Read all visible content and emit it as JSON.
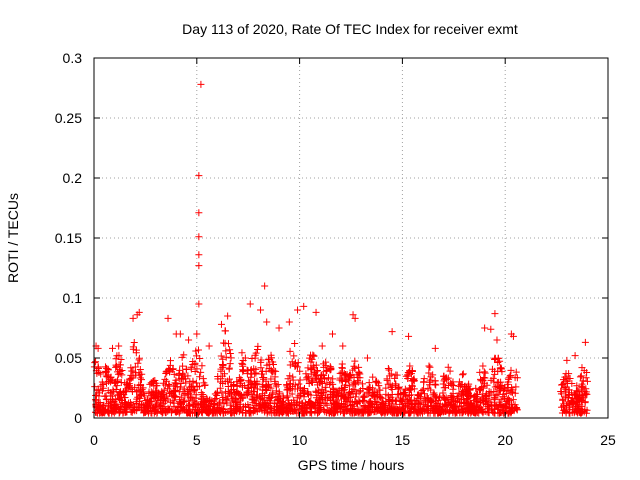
{
  "chart_data": {
    "type": "scatter",
    "title": "Day 113 of 2020, Rate Of TEC Index for receiver exmt",
    "xlabel": "GPS time / hours",
    "ylabel": "ROTI / TECUs",
    "xlim": [
      0,
      25
    ],
    "ylim": [
      0,
      0.3
    ],
    "xticks": [
      0,
      5,
      10,
      15,
      20,
      25
    ],
    "yticks": [
      0,
      0.05,
      0.1,
      0.15,
      0.2,
      0.25,
      0.3
    ],
    "xtick_labels": [
      "0",
      "5",
      "10",
      "15",
      "20",
      "25"
    ],
    "ytick_labels": [
      "0",
      "0.05",
      "0.1",
      "0.15",
      "0.2",
      "0.25",
      "0.3"
    ],
    "grid": true,
    "marker": "plus",
    "color": "#ff0000",
    "data_gaps_hours": [
      [
        20.6,
        22.7
      ]
    ],
    "series": [
      {
        "points": [
          [
            0.1,
            0.06
          ],
          [
            0.2,
            0.058
          ],
          [
            0.9,
            0.058
          ],
          [
            1.2,
            0.06
          ],
          [
            1.9,
            0.083
          ],
          [
            2.1,
            0.086
          ],
          [
            2.2,
            0.088
          ],
          [
            3.6,
            0.083
          ],
          [
            4.0,
            0.07
          ],
          [
            4.2,
            0.07
          ],
          [
            4.6,
            0.065
          ],
          [
            5.0,
            0.07
          ],
          [
            5.1,
            0.095
          ],
          [
            5.1,
            0.127
          ],
          [
            5.1,
            0.136
          ],
          [
            5.1,
            0.151
          ],
          [
            5.1,
            0.171
          ],
          [
            5.1,
            0.202
          ],
          [
            5.2,
            0.278
          ],
          [
            5.6,
            0.06
          ],
          [
            6.2,
            0.078
          ],
          [
            6.5,
            0.085
          ],
          [
            7.6,
            0.095
          ],
          [
            8.1,
            0.09
          ],
          [
            8.3,
            0.11
          ],
          [
            8.4,
            0.08
          ],
          [
            9.0,
            0.075
          ],
          [
            9.5,
            0.08
          ],
          [
            9.9,
            0.09
          ],
          [
            10.2,
            0.093
          ],
          [
            10.8,
            0.088
          ],
          [
            11.1,
            0.06
          ],
          [
            11.6,
            0.07
          ],
          [
            12.1,
            0.06
          ],
          [
            12.6,
            0.086
          ],
          [
            12.7,
            0.083
          ],
          [
            13.3,
            0.05
          ],
          [
            14.5,
            0.072
          ],
          [
            15.3,
            0.068
          ],
          [
            16.6,
            0.058
          ],
          [
            19.0,
            0.075
          ],
          [
            19.3,
            0.074
          ],
          [
            19.5,
            0.087
          ],
          [
            19.6,
            0.065
          ],
          [
            20.3,
            0.07
          ],
          [
            20.4,
            0.068
          ],
          [
            23.0,
            0.048
          ],
          [
            23.4,
            0.052
          ],
          [
            23.9,
            0.063
          ]
        ]
      }
    ]
  }
}
